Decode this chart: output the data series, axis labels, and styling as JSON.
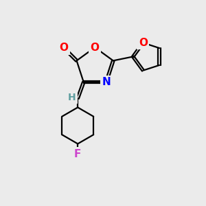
{
  "bg_color": "#ebebeb",
  "bond_color": "#000000",
  "bond_width": 1.6,
  "atom_colors": {
    "O": "#ff0000",
    "N": "#0000ff",
    "F": "#cc44cc",
    "H": "#5f9ea0",
    "C": "#000000"
  },
  "font_size_atoms": 11,
  "font_size_H": 10,
  "font_size_F": 11
}
